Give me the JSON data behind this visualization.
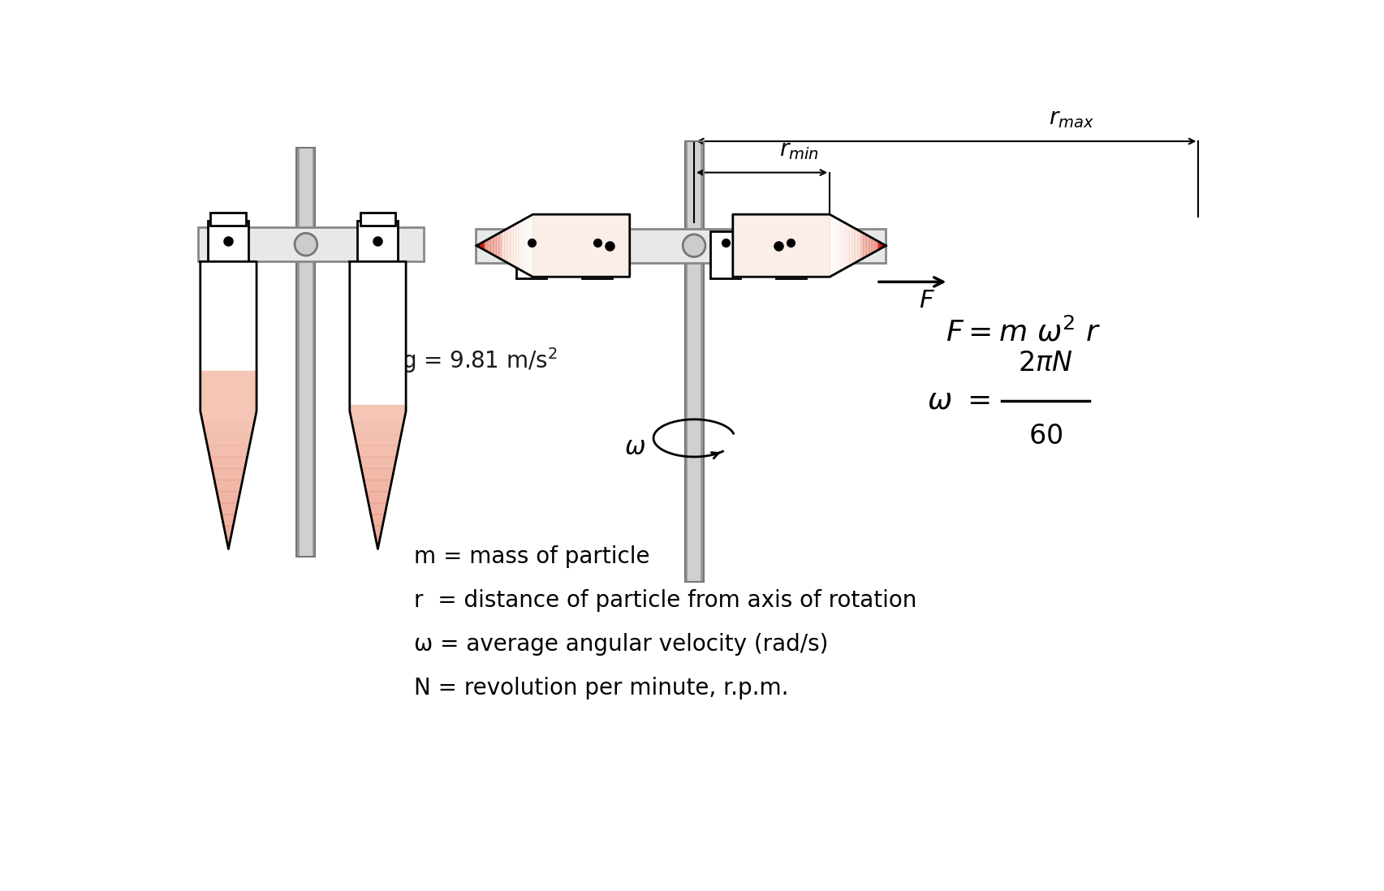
{
  "bg_color": "#ffffff",
  "text_color": "#1a1a1a",
  "tube_fill_light": "#f5c5b5",
  "tube_fill_medium": "#e89080",
  "tube_fill_dark": "#cc1100",
  "rod_color_light": "#cccccc",
  "rod_color_mid": "#aaaaaa",
  "rod_color_dark": "#888888",
  "arm_color": "#e8e8e8",
  "arm_border": "#888888",
  "g_text": "g = 9.81 m/s",
  "legend1": "m = mass of particle",
  "legend2": "r  = distance of particle from axis of rotation",
  "legend3": "ω = average angular velocity (rad/s)",
  "legend4": "N = revolution per minute, r.p.m."
}
